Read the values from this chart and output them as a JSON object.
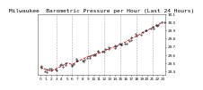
{
  "title": "Barometric Pressure per Hour (Last 24 Hours)",
  "subtitle": "Milwaukee",
  "hours": [
    0,
    1,
    2,
    3,
    4,
    5,
    6,
    7,
    8,
    9,
    10,
    11,
    12,
    13,
    14,
    15,
    16,
    17,
    18,
    19,
    20,
    21,
    22,
    23
  ],
  "pressure": [
    29.45,
    29.42,
    29.4,
    29.43,
    29.46,
    29.5,
    29.48,
    29.52,
    29.55,
    29.58,
    29.6,
    29.62,
    29.65,
    29.68,
    29.7,
    29.73,
    29.76,
    29.8,
    29.83,
    29.87,
    29.9,
    29.94,
    29.97,
    30.01
  ],
  "scatter_offsets": [
    0.01,
    -0.02,
    0.015,
    -0.01,
    0.02,
    -0.015,
    0.01,
    0.02,
    -0.01,
    0.015,
    -0.02,
    0.01,
    0.015,
    -0.01,
    0.02,
    -0.015,
    0.01,
    -0.02,
    0.015,
    -0.01,
    0.02,
    -0.015,
    0.01,
    0.005
  ],
  "ylim": [
    29.35,
    30.1
  ],
  "yticks": [
    29.4,
    29.5,
    29.6,
    29.7,
    29.8,
    29.9,
    30.0,
    30.1
  ],
  "ytick_labels": [
    "29.4",
    "29.5",
    "29.6",
    "29.7",
    "29.8",
    "29.9",
    "30.0",
    "30.1"
  ],
  "xtick_labels": [
    "0",
    "1",
    "2",
    "3",
    "4",
    "5",
    "6",
    "7",
    "8",
    "9",
    "10",
    "11",
    "12",
    "13",
    "14",
    "15",
    "16",
    "17",
    "18",
    "19",
    "20",
    "21",
    "22",
    "23"
  ],
  "line_color": "#cc0000",
  "dot_color": "#111111",
  "grid_color": "#aaaaaa",
  "bg_color": "#ffffff",
  "title_color": "#000000",
  "title_fontsize": 4.5,
  "subtitle_fontsize": 3.5,
  "tick_fontsize": 3.0,
  "vgrid_positions": [
    3,
    6,
    9,
    12,
    15,
    18,
    21
  ]
}
